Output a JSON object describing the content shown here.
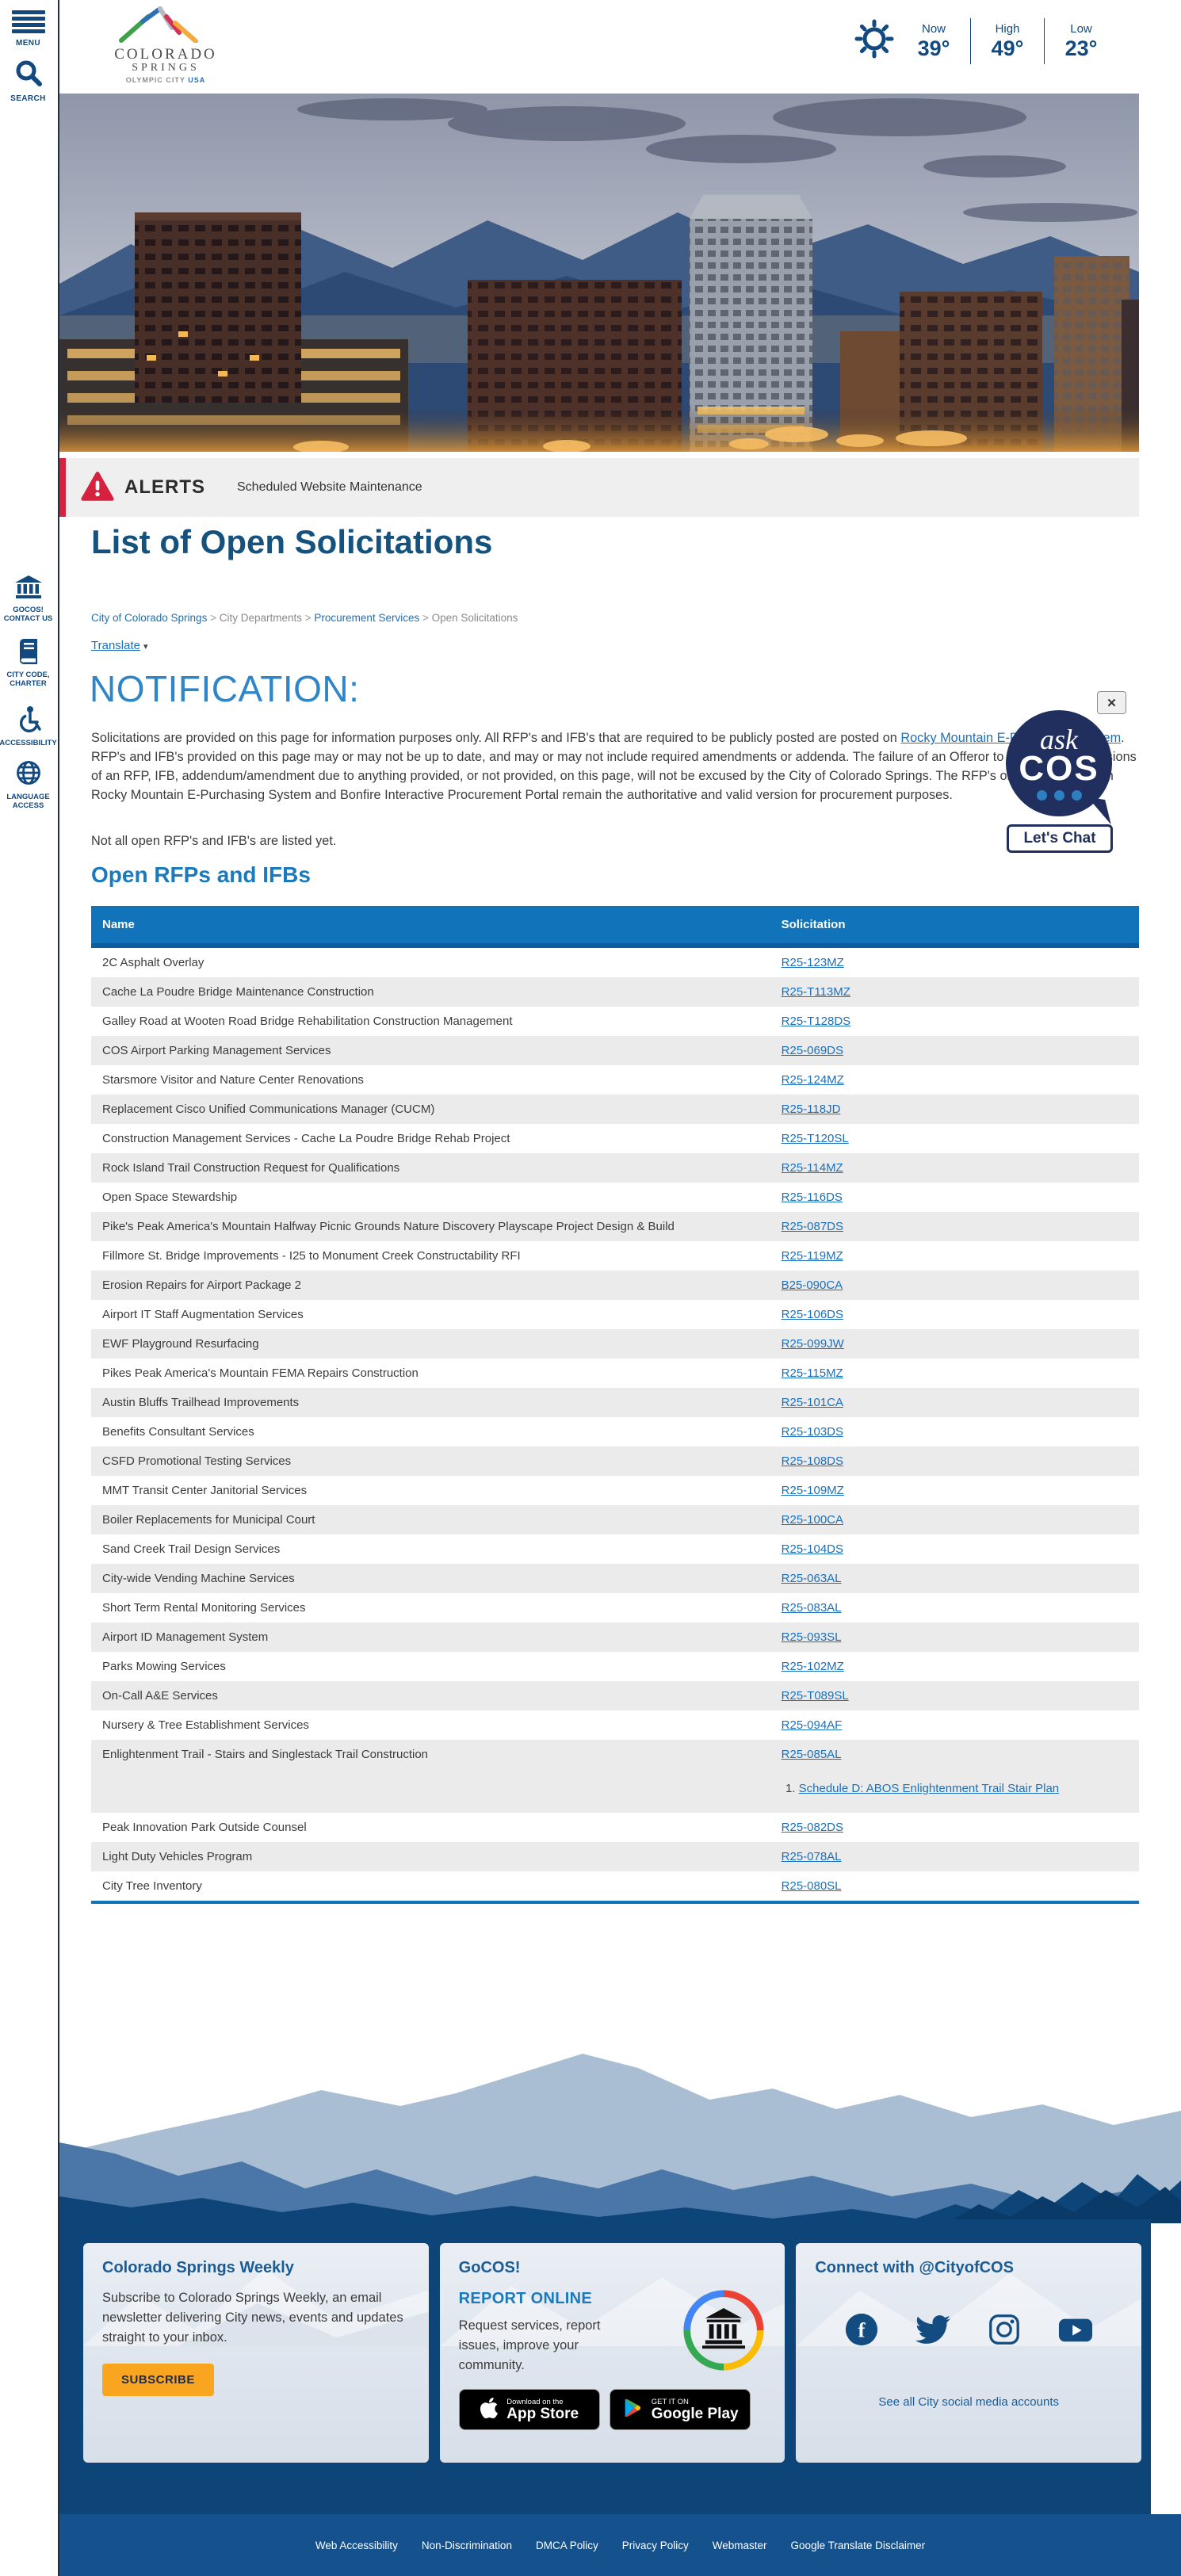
{
  "header": {
    "menu_label": "MENU",
    "search_label": "SEARCH",
    "logo": {
      "name1": "COLORADO",
      "name2": "SPRINGS",
      "tagline": "OLYMPIC CITY",
      "tagline_bold": "USA"
    },
    "weather": {
      "now_label": "Now",
      "now_temp": "39°",
      "high_label": "High",
      "high_temp": "49°",
      "low_label": "Low",
      "low_temp": "23°"
    }
  },
  "sidebar": {
    "quick_links": [
      {
        "icon": "bank-icon",
        "line1": "GOCOS!",
        "line2": "CONTACT US"
      },
      {
        "icon": "book-icon",
        "line1": "CITY CODE,",
        "line2": "CHARTER"
      },
      {
        "icon": "accessibility-icon",
        "line1": "ACCESSIBILITY",
        "line2": ""
      },
      {
        "icon": "globe-icon",
        "line1": "LANGUAGE",
        "line2": "ACCESS"
      }
    ]
  },
  "alert_bar": {
    "label": "ALERTS",
    "message": "Scheduled Website Maintenance"
  },
  "page": {
    "title": "List of Open Solicitations",
    "translate_label": "Translate"
  },
  "breadcrumb": {
    "separator": ">",
    "items": [
      {
        "label": "City of Colorado Springs",
        "is_link": true
      },
      {
        "label": "City Departments",
        "is_link": false
      },
      {
        "label": "Procurement Services",
        "is_link": true
      },
      {
        "label": "Open Solicitations",
        "is_link": false
      }
    ]
  },
  "notification": {
    "heading": "NOTIFICATION:",
    "intro": "Solicitations are provided on this page for information purposes only. All RFP's and IFB's that are required to be publicly posted are posted on ",
    "link_text": "Rocky Mountain E-Purchasing System",
    "body": ". RFP's and IFB's provided on this page may or may not be up to date, and may or may not include required amendments or addenda. The failure of an Offeror to comply with provisions of an RFP, IFB, addendum/amendment due to anything provided, or not provided, on this page, will not be excused by the City of Colorado Springs. The RFP's or IFB's included on Rocky Mountain E-Purchasing System and Bonfire Interactive Procurement Portal remain the authoritative and valid version for procurement purposes.",
    "note": "Not all open RFP's and IFB's are listed yet."
  },
  "chat_widget": {
    "line1": "ask",
    "line2": "COS",
    "button": "Let's Chat",
    "close": "✕"
  },
  "solicitations": {
    "heading": "Open RFPs and IFBs",
    "columns": [
      "Name",
      "Solicitation"
    ],
    "rows": [
      {
        "name": "2C Asphalt Overlay",
        "code": "R25-123MZ"
      },
      {
        "name": "Cache La Poudre Bridge Maintenance Construction",
        "code": "R25-T113MZ"
      },
      {
        "name": "Galley Road at Wooten Road Bridge Rehabilitation Construction Management",
        "code": "R25-T128DS"
      },
      {
        "name": "COS Airport Parking Management Services",
        "code": "R25-069DS"
      },
      {
        "name": "Starsmore Visitor and Nature Center Renovations",
        "code": "R25-124MZ"
      },
      {
        "name": "Replacement Cisco Unified Communications Manager (CUCM)",
        "code": "R25-118JD"
      },
      {
        "name": "Construction Management Services - Cache La Poudre Bridge Rehab Project",
        "code": "R25-T120SL"
      },
      {
        "name": "Rock Island Trail Construction Request for Qualifications",
        "code": "R25-114MZ"
      },
      {
        "name": "Open Space Stewardship",
        "code": "R25-116DS"
      },
      {
        "name": "Pike's Peak America's Mountain Halfway Picnic Grounds Nature Discovery Playscape Project Design & Build",
        "code": "R25-087DS"
      },
      {
        "name": "Fillmore St. Bridge Improvements - I25 to Monument Creek Constructability RFI",
        "code": "R25-119MZ"
      },
      {
        "name": "Erosion Repairs for Airport Package 2",
        "code": "B25-090CA"
      },
      {
        "name": "Airport IT Staff Augmentation Services",
        "code": "R25-106DS"
      },
      {
        "name": "EWF Playground Resurfacing",
        "code": "R25-099JW"
      },
      {
        "name": "Pikes Peak America's Mountain FEMA Repairs Construction",
        "code": "R25-115MZ"
      },
      {
        "name": "Austin Bluffs Trailhead Improvements",
        "code": "R25-101CA"
      },
      {
        "name": "Benefits Consultant Services",
        "code": "R25-103DS"
      },
      {
        "name": "CSFD Promotional Testing Services",
        "code": "R25-108DS"
      },
      {
        "name": "MMT Transit Center Janitorial Services",
        "code": "R25-109MZ"
      },
      {
        "name": "Boiler Replacements for Municipal Court",
        "code": "R25-100CA"
      },
      {
        "name": "Sand Creek Trail Design Services",
        "code": "R25-104DS"
      },
      {
        "name": "City-wide Vending Machine Services",
        "code": "R25-063AL"
      },
      {
        "name": "Short Term Rental Monitoring Services",
        "code": "R25-083AL"
      },
      {
        "name": "Airport ID Management System",
        "code": "R25-093SL"
      },
      {
        "name": "Parks Mowing Services",
        "code": "R25-102MZ"
      },
      {
        "name": "On-Call A&E Services",
        "code": "R25-T089SL"
      },
      {
        "name": "Nursery & Tree Establishment Services",
        "code": "R25-094AF"
      },
      {
        "name": "Enlightenment Trail - Stairs and Singlestack Trail Construction",
        "code": "R25-085AL",
        "attachments": [
          "Schedule D: ABOS Enlightenment Trail Stair Plan"
        ]
      },
      {
        "name": "Peak Innovation Park Outside Counsel",
        "code": "R25-082DS"
      },
      {
        "name": "Light Duty Vehicles Program",
        "code": "R25-078AL"
      },
      {
        "name": "City Tree Inventory",
        "code": "R25-080SL"
      }
    ]
  },
  "footer": {
    "weekly": {
      "title": "Colorado Springs Weekly",
      "body": "Subscribe to Colorado Springs Weekly, an email newsletter delivering City news, events and updates straight to your inbox.",
      "button": "SUBSCRIBE"
    },
    "gocos": {
      "title": "GoCOS!",
      "subtitle": "REPORT ONLINE",
      "body": "Request services, report issues, improve your community.",
      "app_store": {
        "small": "Download on the",
        "big": "App Store"
      },
      "google_play": {
        "small": "GET IT ON",
        "big": "Google Play"
      }
    },
    "connect": {
      "title": "Connect with @CityofCOS",
      "icons": [
        "facebook-icon",
        "twitter-icon",
        "instagram-icon",
        "youtube-icon"
      ],
      "link": "See all City social media accounts"
    },
    "legal_links": [
      "Web Accessibility",
      "Non-Discrimination",
      "DMCA Policy",
      "Privacy Policy",
      "Webmaster",
      "Google Translate Disclaimer"
    ]
  },
  "colors": {
    "navy": "#12497e",
    "link_blue": "#1c70b8",
    "table_header_blue": "#1173b9",
    "heading_blue": "#1a7abc",
    "alert_red": "#d6213f",
    "subscribe_orange": "#f9a51f",
    "footer_navy": "#0e4578",
    "bottom_bar_blue": "#15518c",
    "chat_navy": "#202f5e"
  }
}
